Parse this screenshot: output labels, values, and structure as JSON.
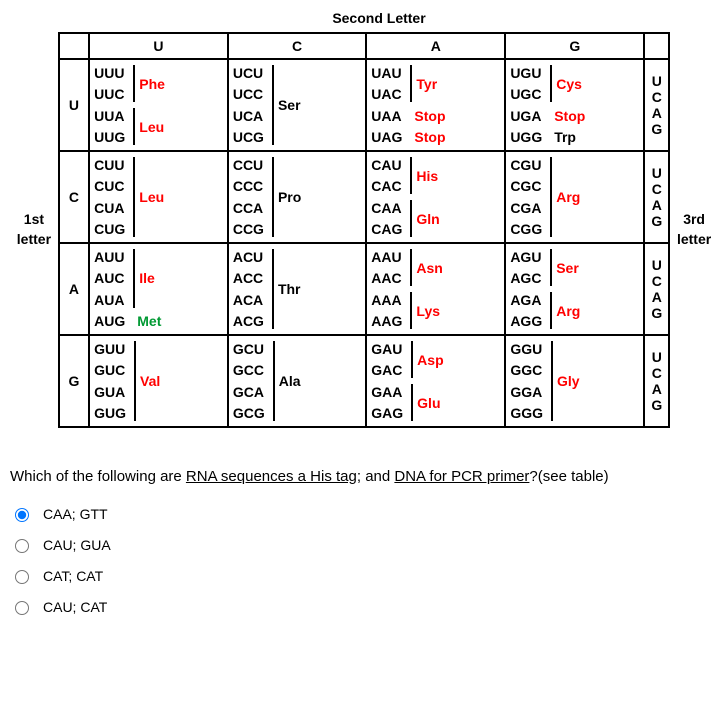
{
  "title_top": "Second Letter",
  "label_left_1": "1st",
  "label_left_2": "letter",
  "label_right_1": "3rd",
  "label_right_2": "letter",
  "cols": [
    "U",
    "C",
    "A",
    "G"
  ],
  "rows": [
    "U",
    "C",
    "A",
    "G"
  ],
  "third": [
    "U",
    "C",
    "A",
    "G"
  ],
  "cells": {
    "U": {
      "U": {
        "codons": [
          "UUU",
          "UUC",
          "UUA",
          "UUG"
        ],
        "aas": [
          {
            "label": "Phe",
            "span": 2,
            "color": "red"
          },
          {
            "label": "Leu",
            "span": 2,
            "color": "red"
          }
        ]
      },
      "C": {
        "codons": [
          "UCU",
          "UCC",
          "UCA",
          "UCG"
        ],
        "aas": [
          {
            "label": "Ser",
            "span": 4,
            "color": "black"
          }
        ]
      },
      "A": {
        "codons": [
          "UAU",
          "UAC",
          "UAA",
          "UAG"
        ],
        "aas": [
          {
            "label": "Tyr",
            "span": 2,
            "color": "red"
          },
          {
            "label": "Stop",
            "span": 1,
            "color": "red",
            "nobar": true
          },
          {
            "label": "Stop",
            "span": 1,
            "color": "red",
            "nobar": true
          }
        ]
      },
      "G": {
        "codons": [
          "UGU",
          "UGC",
          "UGA",
          "UGG"
        ],
        "aas": [
          {
            "label": "Cys",
            "span": 2,
            "color": "red"
          },
          {
            "label": "Stop",
            "span": 1,
            "color": "red",
            "nobar": true
          },
          {
            "label": "Trp",
            "span": 1,
            "color": "black",
            "nobar": true
          }
        ]
      }
    },
    "C": {
      "U": {
        "codons": [
          "CUU",
          "CUC",
          "CUA",
          "CUG"
        ],
        "aas": [
          {
            "label": "Leu",
            "span": 4,
            "color": "red"
          }
        ]
      },
      "C": {
        "codons": [
          "CCU",
          "CCC",
          "CCA",
          "CCG"
        ],
        "aas": [
          {
            "label": "Pro",
            "span": 4,
            "color": "black"
          }
        ]
      },
      "A": {
        "codons": [
          "CAU",
          "CAC",
          "CAA",
          "CAG"
        ],
        "aas": [
          {
            "label": "His",
            "span": 2,
            "color": "red"
          },
          {
            "label": "Gln",
            "span": 2,
            "color": "red"
          }
        ]
      },
      "G": {
        "codons": [
          "CGU",
          "CGC",
          "CGA",
          "CGG"
        ],
        "aas": [
          {
            "label": "Arg",
            "span": 4,
            "color": "red"
          }
        ]
      }
    },
    "A": {
      "U": {
        "codons": [
          "AUU",
          "AUC",
          "AUA",
          "AUG"
        ],
        "aas": [
          {
            "label": "Ile",
            "span": 3,
            "color": "red"
          },
          {
            "label": "Met",
            "span": 1,
            "color": "green",
            "nobar": true
          }
        ]
      },
      "C": {
        "codons": [
          "ACU",
          "ACC",
          "ACA",
          "ACG"
        ],
        "aas": [
          {
            "label": "Thr",
            "span": 4,
            "color": "black"
          }
        ]
      },
      "A": {
        "codons": [
          "AAU",
          "AAC",
          "AAA",
          "AAG"
        ],
        "aas": [
          {
            "label": "Asn",
            "span": 2,
            "color": "red"
          },
          {
            "label": "Lys",
            "span": 2,
            "color": "red"
          }
        ]
      },
      "G": {
        "codons": [
          "AGU",
          "AGC",
          "AGA",
          "AGG"
        ],
        "aas": [
          {
            "label": "Ser",
            "span": 2,
            "color": "red"
          },
          {
            "label": "Arg",
            "span": 2,
            "color": "red"
          }
        ]
      }
    },
    "G": {
      "U": {
        "codons": [
          "GUU",
          "GUC",
          "GUA",
          "GUG"
        ],
        "aas": [
          {
            "label": "Val",
            "span": 4,
            "color": "red"
          }
        ]
      },
      "C": {
        "codons": [
          "GCU",
          "GCC",
          "GCA",
          "GCG"
        ],
        "aas": [
          {
            "label": "Ala",
            "span": 4,
            "color": "black"
          }
        ]
      },
      "A": {
        "codons": [
          "GAU",
          "GAC",
          "GAA",
          "GAG"
        ],
        "aas": [
          {
            "label": "Asp",
            "span": 2,
            "color": "red"
          },
          {
            "label": "Glu",
            "span": 2,
            "color": "red"
          }
        ]
      },
      "G": {
        "codons": [
          "GGU",
          "GGC",
          "GGA",
          "GGG"
        ],
        "aas": [
          {
            "label": "Gly",
            "span": 4,
            "color": "red"
          }
        ]
      }
    }
  },
  "question_pre": "Which of the following are ",
  "question_u1": "RNA sequences a His tag",
  "question_mid": "; and ",
  "question_u2": "DNA for PCR primer",
  "question_post": "?(see table)",
  "options": [
    {
      "text": "CAA; GTT",
      "selected": true
    },
    {
      "text": "CAU; GUA",
      "selected": false
    },
    {
      "text": "CAT; CAT",
      "selected": false
    },
    {
      "text": "CAU; CAT",
      "selected": false
    }
  ]
}
